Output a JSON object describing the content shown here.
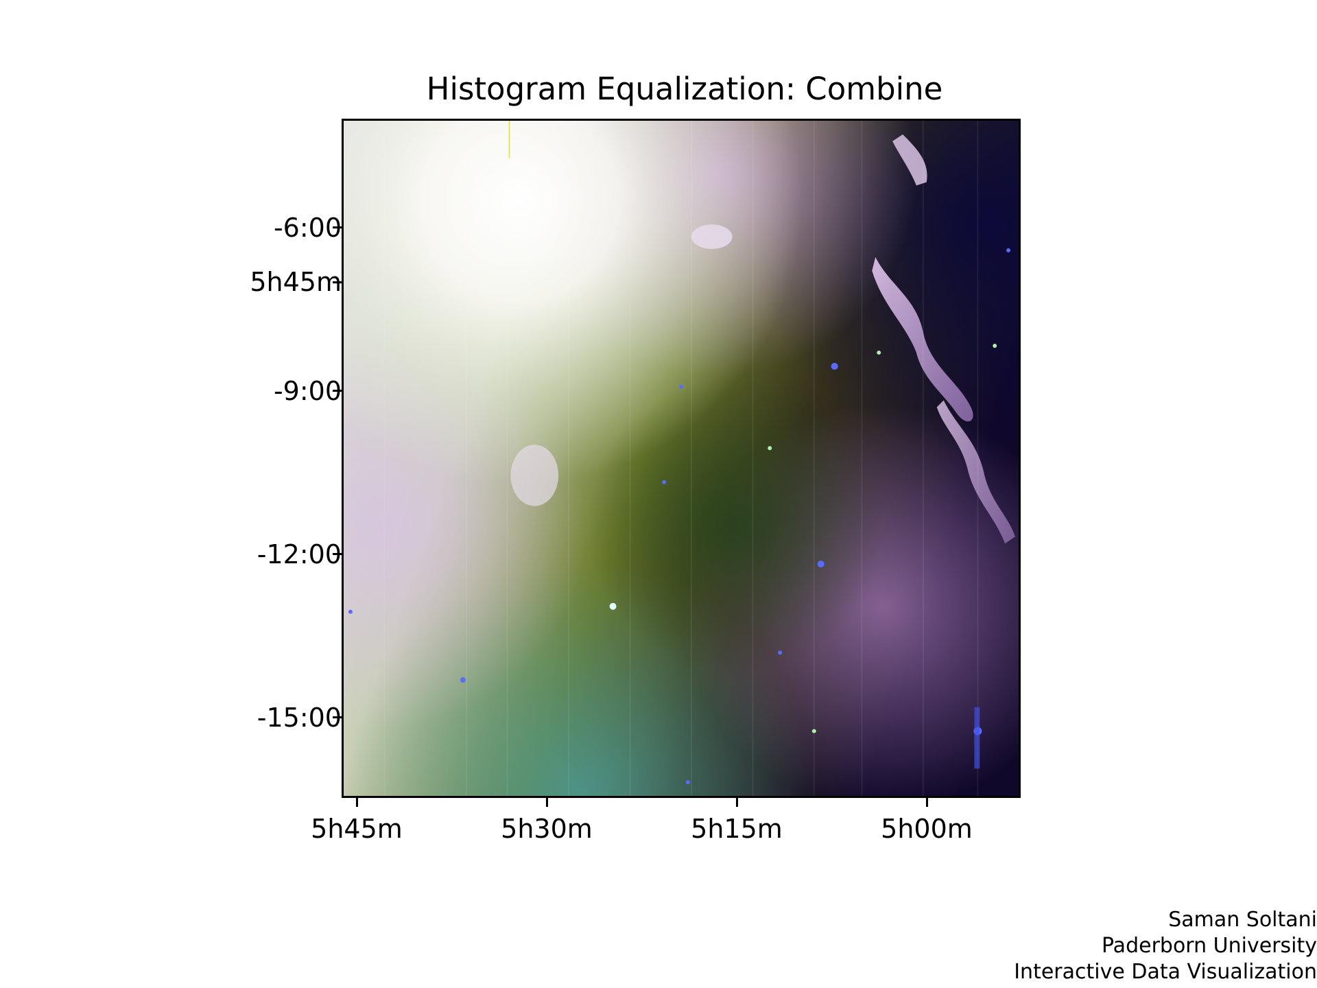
{
  "title": "Histogram Equalization: Combine",
  "image": {
    "subject": "false-color infrared nebula",
    "colors": {
      "bright_glow": "#ffffff",
      "purple_cloud": "#b48cc8",
      "green_dust": "#4a6a1a",
      "dark_sky": "#1c1240",
      "star_blue": "#5060ff"
    }
  },
  "y_axis": {
    "ticks": [
      "-6:00",
      "5h45m",
      "-9:00",
      "-12:00",
      "-15:00"
    ]
  },
  "x_axis": {
    "ticks": [
      "5h45m",
      "5h30m",
      "5h15m",
      "5h00m"
    ]
  },
  "credit": {
    "lines": [
      "Saman Soltani",
      "Paderborn University",
      "Interactive Data Visualization"
    ]
  }
}
